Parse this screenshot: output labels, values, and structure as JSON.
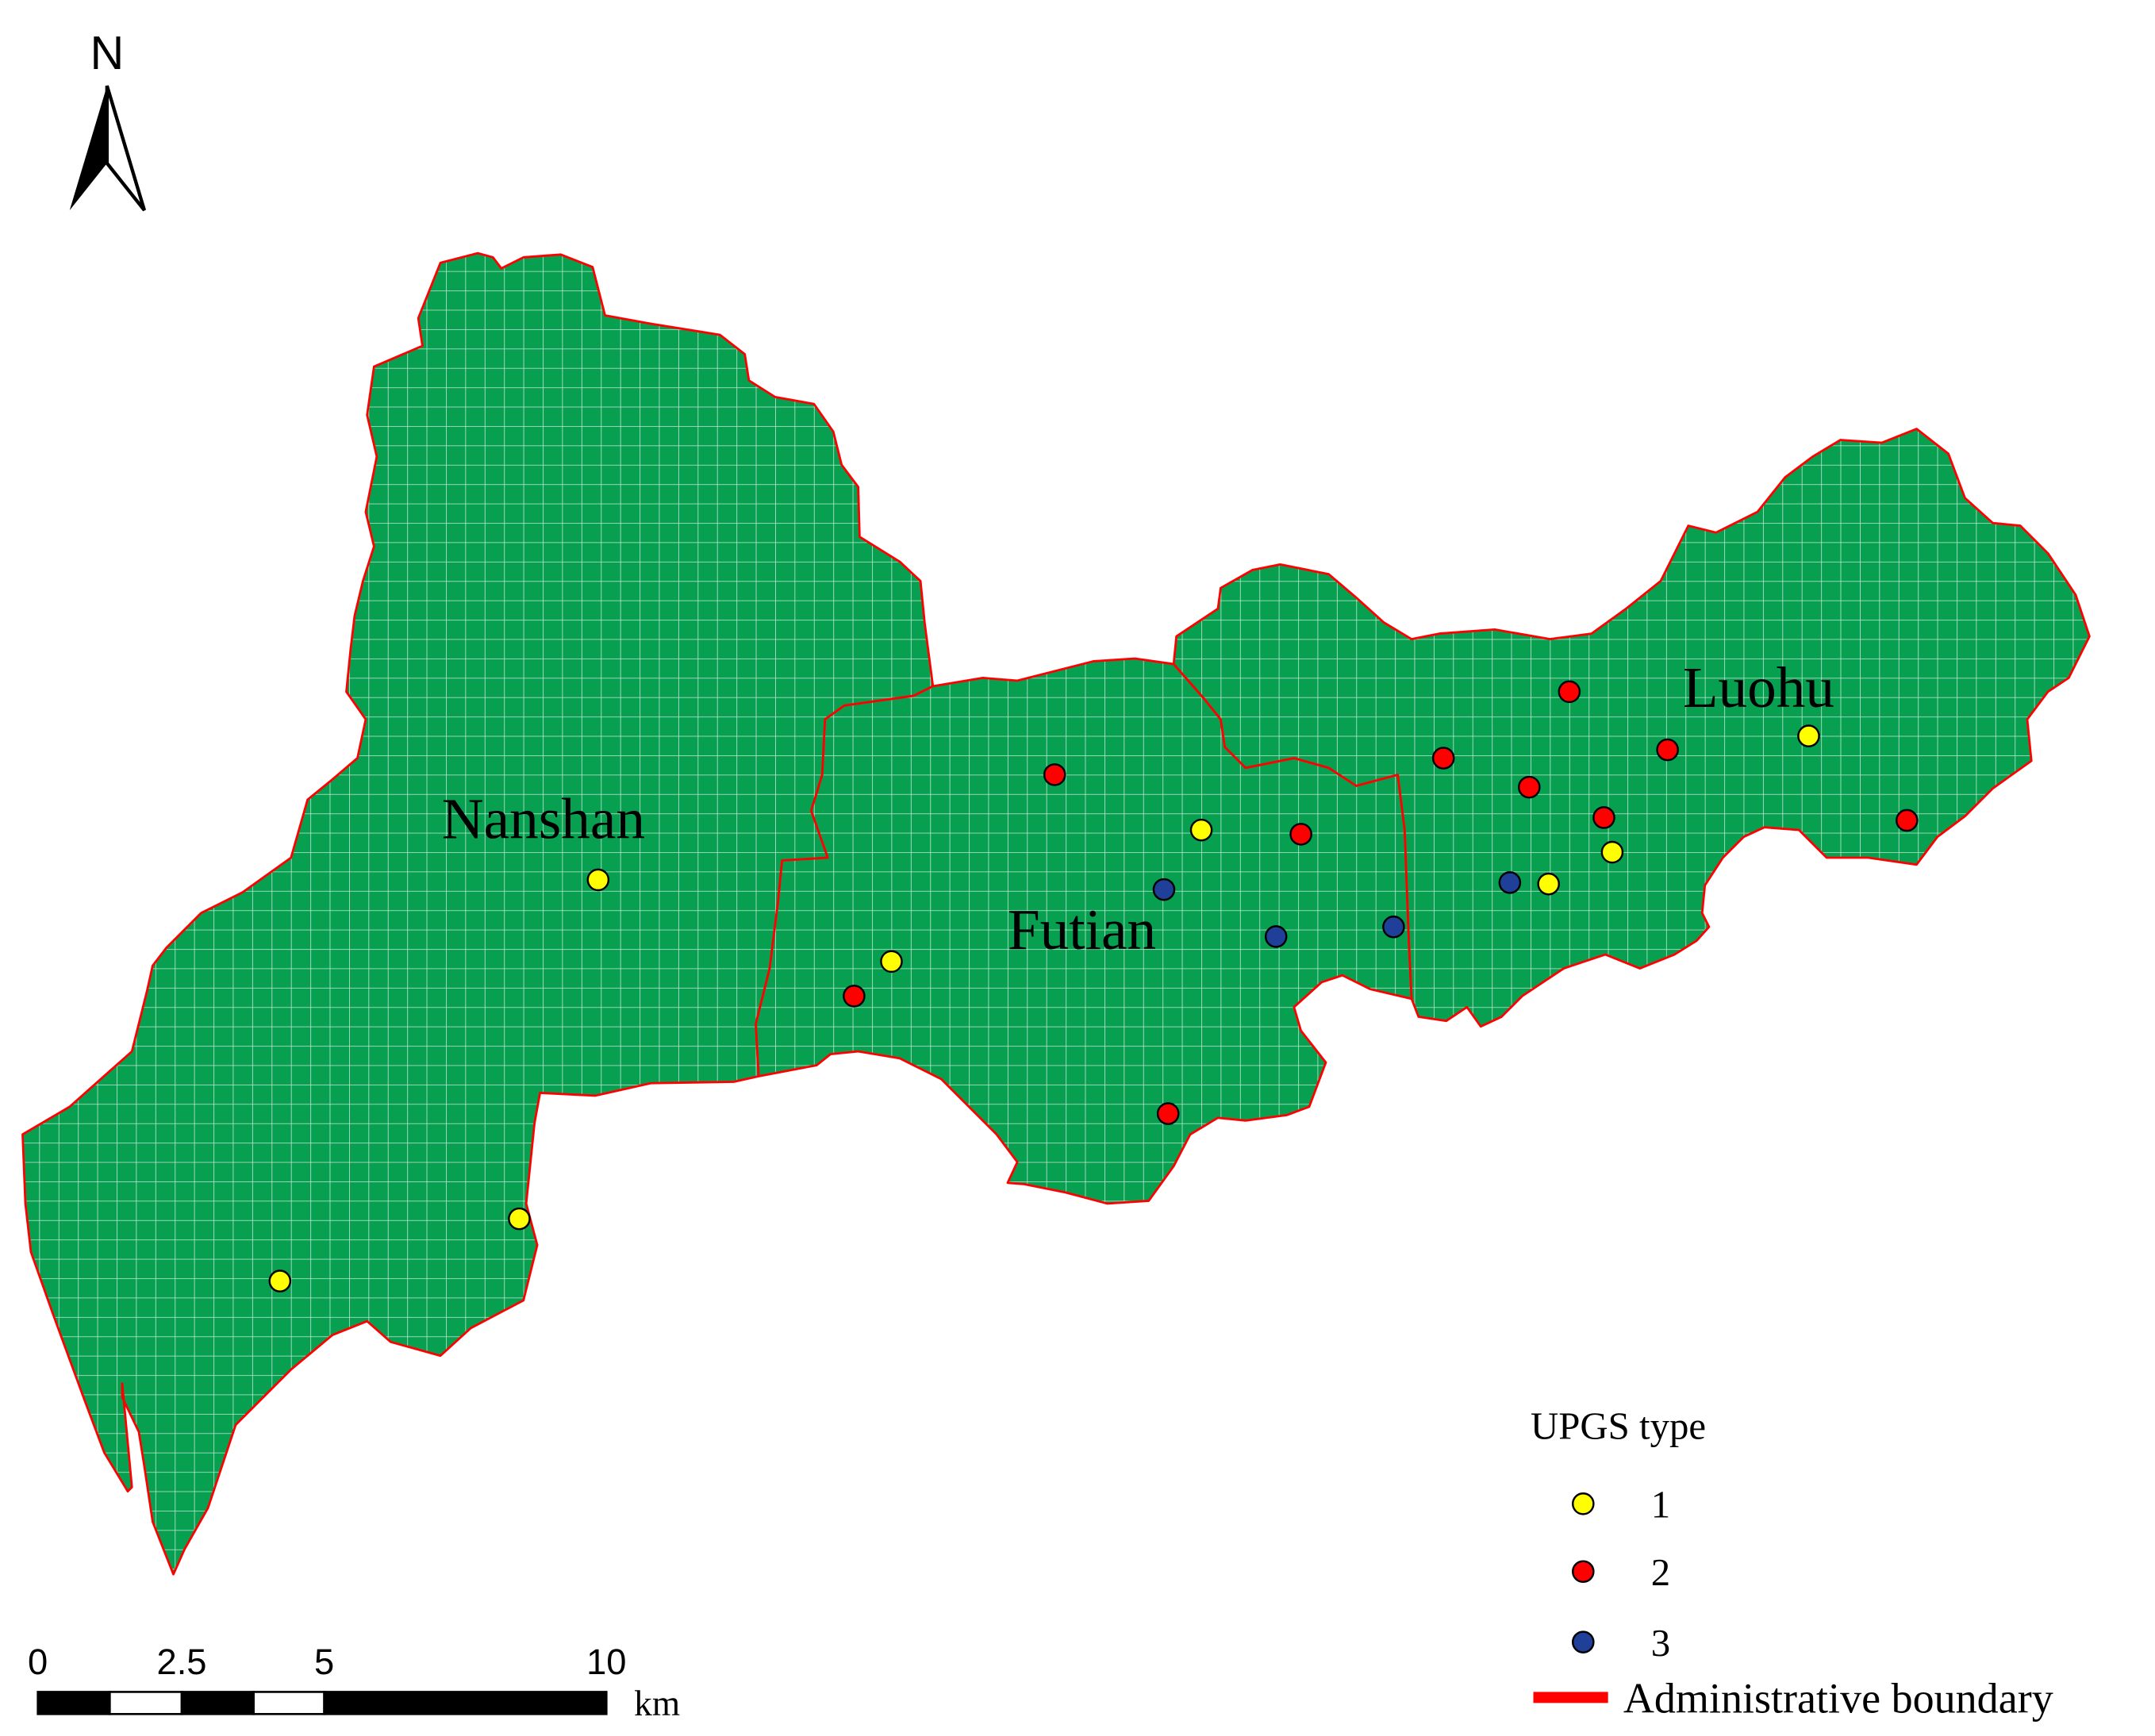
{
  "north_arrow": {
    "label": "N"
  },
  "districts": [
    {
      "name": "Nanshan"
    },
    {
      "name": "Futian"
    },
    {
      "name": "Luohu"
    }
  ],
  "legend": {
    "title": "UPGS type",
    "types": [
      {
        "label": "1",
        "color": "#ffff00"
      },
      {
        "label": "2",
        "color": "#ff0000"
      },
      {
        "label": "3",
        "color": "#1f3f99"
      }
    ],
    "boundary_label": "Administrative boundary",
    "boundary_color": "#ff0000"
  },
  "scale_bar": {
    "ticks": [
      "0",
      "2.5",
      "5",
      "10"
    ],
    "unit": "km"
  },
  "map_style": {
    "land_color": "#07a050",
    "grid_color": "#ffffff",
    "boundary_color": "#ff0000"
  },
  "sites": [
    {
      "type": 1,
      "district": "Nanshan"
    },
    {
      "type": 1,
      "district": "Nanshan"
    },
    {
      "type": 1,
      "district": "Nanshan"
    },
    {
      "type": 2,
      "district": "Futian"
    },
    {
      "type": 1,
      "district": "Futian"
    },
    {
      "type": 2,
      "district": "Futian"
    },
    {
      "type": 1,
      "district": "Futian"
    },
    {
      "type": 2,
      "district": "Futian"
    },
    {
      "type": 3,
      "district": "Futian"
    },
    {
      "type": 3,
      "district": "Futian"
    },
    {
      "type": 3,
      "district": "Futian"
    },
    {
      "type": 2,
      "district": "Futian"
    },
    {
      "type": 2,
      "district": "Luohu"
    },
    {
      "type": 2,
      "district": "Luohu"
    },
    {
      "type": 2,
      "district": "Luohu"
    },
    {
      "type": 2,
      "district": "Luohu"
    },
    {
      "type": 2,
      "district": "Luohu"
    },
    {
      "type": 1,
      "district": "Luohu"
    },
    {
      "type": 1,
      "district": "Luohu"
    },
    {
      "type": 3,
      "district": "Luohu"
    },
    {
      "type": 2,
      "district": "Luohu"
    },
    {
      "type": 1,
      "district": "Luohu"
    }
  ]
}
